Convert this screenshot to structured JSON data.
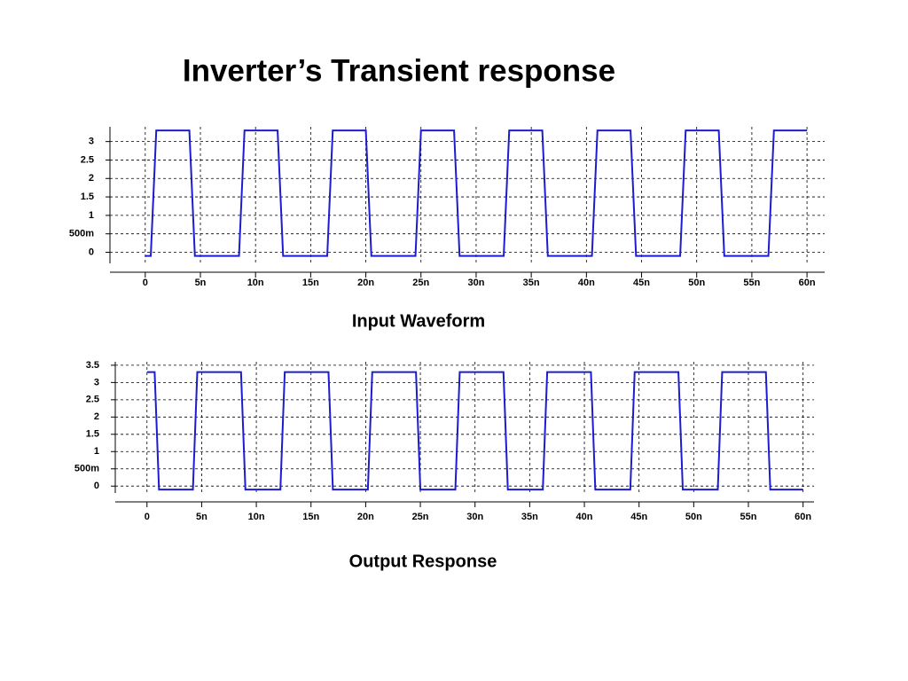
{
  "title": "Inverter’s Transient response",
  "chart_data": [
    {
      "type": "line",
      "caption": "Input Waveform",
      "color": "#1c1cd0",
      "grid": true,
      "xlim": [
        -3.2e-09,
        6.16e-08
      ],
      "ylim": [
        -0.3,
        3.4
      ],
      "xticks": [
        0,
        {
          "value": 5e-09,
          "label": "5n"
        },
        {
          "value": 1e-08,
          "label": "10n"
        },
        {
          "value": 1.5e-08,
          "label": "15n"
        },
        {
          "value": 2e-08,
          "label": "20n"
        },
        {
          "value": 2.5e-08,
          "label": "25n"
        },
        {
          "value": 3e-08,
          "label": "30n"
        },
        {
          "value": 3.5e-08,
          "label": "35n"
        },
        {
          "value": 4e-08,
          "label": "40n"
        },
        {
          "value": 4.5e-08,
          "label": "45n"
        },
        {
          "value": 5e-08,
          "label": "50n"
        },
        {
          "value": 5.5e-08,
          "label": "55n"
        },
        {
          "value": 6e-08,
          "label": "60n"
        }
      ],
      "yticks": [
        0,
        {
          "value": 0.5,
          "label": "500m"
        },
        1,
        1.5,
        2,
        2.5,
        3
      ],
      "x": [
        0,
        5e-10,
        1e-09,
        4e-09,
        4.5e-09,
        8.5e-09,
        9e-09,
        1.2e-08,
        1.25e-08,
        1.65e-08,
        1.7e-08,
        2e-08,
        2.05e-08,
        2.45e-08,
        2.5e-08,
        2.8e-08,
        2.85e-08,
        3.25e-08,
        3.3e-08,
        3.6e-08,
        3.65e-08,
        4.05e-08,
        4.1e-08,
        4.4e-08,
        4.45e-08,
        4.85e-08,
        4.9e-08,
        5.2e-08,
        5.25e-08,
        5.65e-08,
        5.7e-08,
        6e-08
      ],
      "values": [
        -0.1,
        -0.1,
        3.3,
        3.3,
        -0.1,
        -0.1,
        3.3,
        3.3,
        -0.1,
        -0.1,
        3.3,
        3.3,
        -0.1,
        -0.1,
        3.3,
        3.3,
        -0.1,
        -0.1,
        3.3,
        3.3,
        -0.1,
        -0.1,
        3.3,
        3.3,
        -0.1,
        -0.1,
        3.3,
        3.3,
        -0.1,
        -0.1,
        3.3,
        3.3
      ]
    },
    {
      "type": "line",
      "caption": "Output Response",
      "color": "#1c1cd0",
      "grid": true,
      "xlim": [
        -2.9e-09,
        6.1e-08
      ],
      "ylim": [
        -0.2,
        3.6
      ],
      "xticks": [
        0,
        {
          "value": 5e-09,
          "label": "5n"
        },
        {
          "value": 1e-08,
          "label": "10n"
        },
        {
          "value": 1.5e-08,
          "label": "15n"
        },
        {
          "value": 2e-08,
          "label": "20n"
        },
        {
          "value": 2.5e-08,
          "label": "25n"
        },
        {
          "value": 3e-08,
          "label": "30n"
        },
        {
          "value": 3.5e-08,
          "label": "35n"
        },
        {
          "value": 4e-08,
          "label": "40n"
        },
        {
          "value": 4.5e-08,
          "label": "45n"
        },
        {
          "value": 5e-08,
          "label": "50n"
        },
        {
          "value": 5.5e-08,
          "label": "55n"
        },
        {
          "value": 6e-08,
          "label": "60n"
        }
      ],
      "yticks": [
        0,
        {
          "value": 0.5,
          "label": "500m"
        },
        1,
        1.5,
        2,
        2.5,
        3,
        3.5
      ],
      "x": [
        0,
        7e-10,
        1.1e-09,
        4.2e-09,
        4.6e-09,
        8.6e-09,
        9e-09,
        1.22e-08,
        1.26e-08,
        1.66e-08,
        1.7e-08,
        2.02e-08,
        2.06e-08,
        2.46e-08,
        2.5e-08,
        2.82e-08,
        2.86e-08,
        3.26e-08,
        3.3e-08,
        3.62e-08,
        3.66e-08,
        4.06e-08,
        4.1e-08,
        4.42e-08,
        4.46e-08,
        4.86e-08,
        4.9e-08,
        5.22e-08,
        5.26e-08,
        5.66e-08,
        5.7e-08,
        6e-08
      ],
      "values": [
        3.3,
        3.3,
        -0.1,
        -0.1,
        3.3,
        3.3,
        -0.1,
        -0.1,
        3.3,
        3.3,
        -0.1,
        -0.1,
        3.3,
        3.3,
        -0.1,
        -0.1,
        3.3,
        3.3,
        -0.1,
        -0.1,
        3.3,
        3.3,
        -0.1,
        -0.1,
        3.3,
        3.3,
        -0.1,
        -0.1,
        3.3,
        3.3,
        -0.1,
        -0.1
      ]
    }
  ]
}
